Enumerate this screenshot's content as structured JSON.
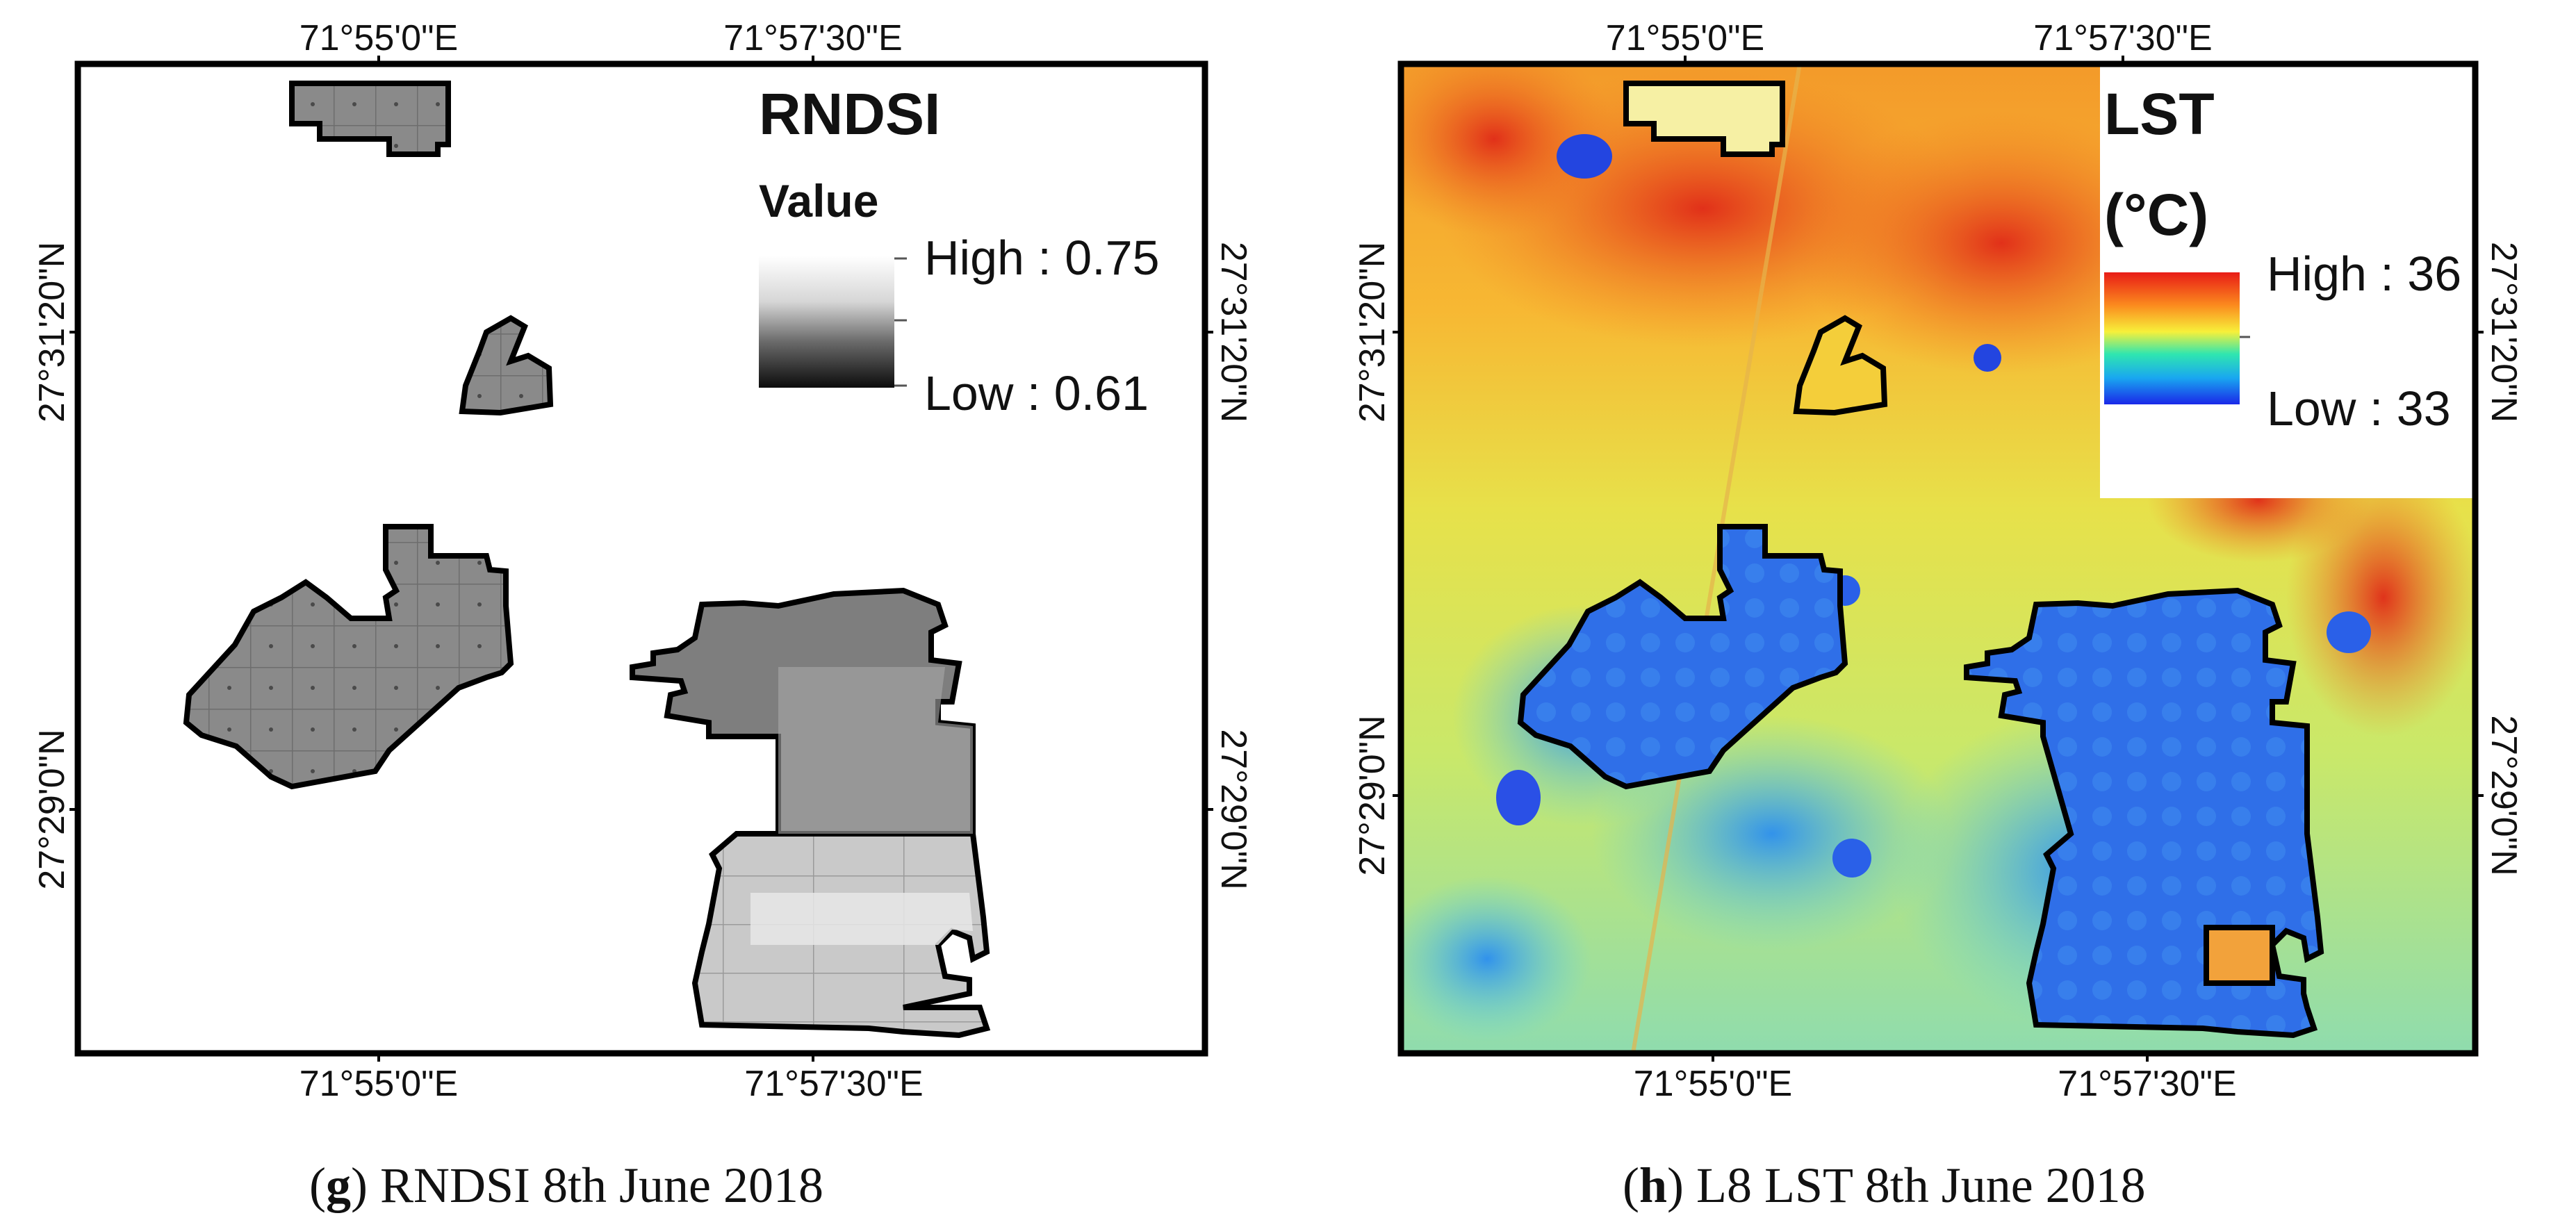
{
  "panels": [
    {
      "id": "g",
      "title": "RNDSI",
      "legend_heading": "Value",
      "legend_high": "High : 0.75",
      "legend_low": "Low : 0.61",
      "lon_top": [
        "71°55'0\"E",
        "71°57'30\"E"
      ],
      "lon_bottom": [
        "71°55'0\"E",
        "71°57'30\"E"
      ],
      "lat_left": [
        "27°31'20\"N",
        "27°29'0\"N"
      ],
      "lat_right": [
        "27°31'20\"N",
        "27°29'0\"N"
      ],
      "caption_letter": "g",
      "caption_text": "RNDSI 8th June 2018",
      "colors": {
        "high": "#f7f7f7",
        "low": "#111111",
        "fill": "#8c8c8c"
      }
    },
    {
      "id": "h",
      "title": "LST",
      "legend_heading": "(°C)",
      "legend_high": "High : 36",
      "legend_low": "Low : 33",
      "lon_top": [
        "71°55'0\"E",
        "71°57'30\"E"
      ],
      "lon_bottom": [
        "71°55'0\"E",
        "71°57'30\"E"
      ],
      "lat_left": [
        "27°31'20\"N",
        "27°29'0\"N"
      ],
      "lat_right": [
        "27°31'20\"N",
        "27°29'0\"N"
      ],
      "caption_letter": "h",
      "caption_text": "L8 LST 8th June 2018",
      "colors": {
        "high": "#e8261f",
        "mid": "#f5f046",
        "low": "#1f3cf0"
      }
    }
  ]
}
